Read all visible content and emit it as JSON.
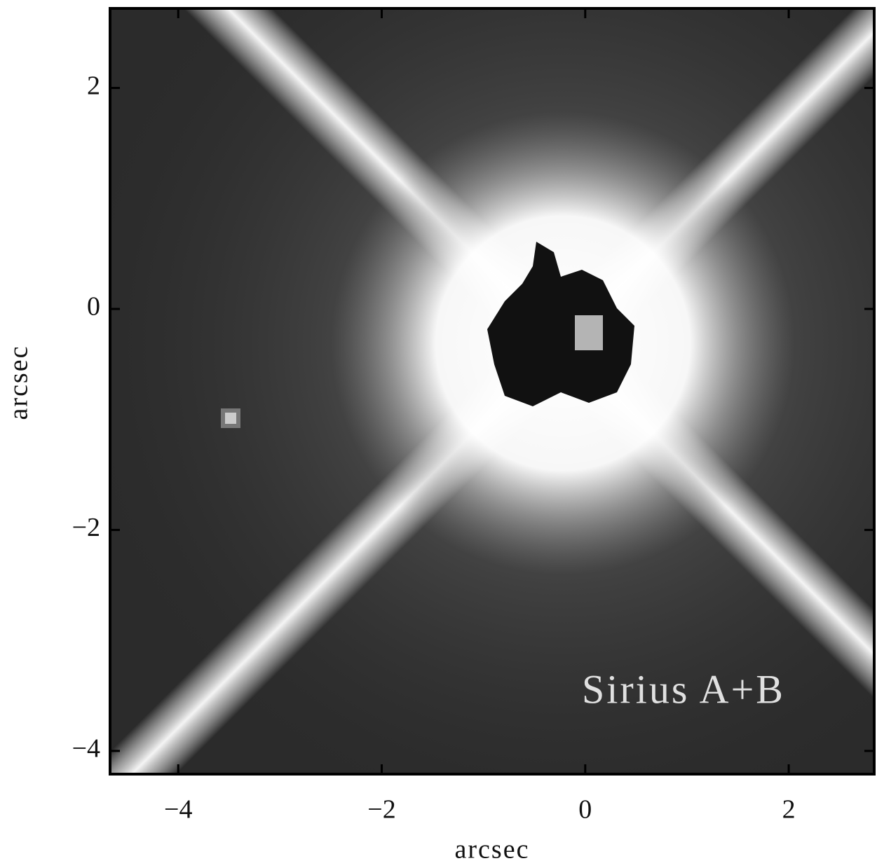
{
  "chart_data": {
    "type": "image",
    "annotation": "Sirius A+B",
    "xlabel": "arcsec",
    "ylabel": "arcsec",
    "xlim": [
      -4.67,
      2.84
    ],
    "ylim": [
      -4.21,
      2.72
    ],
    "xticks": [
      {
        "value": -4,
        "label": "−4"
      },
      {
        "value": -2,
        "label": "−2"
      },
      0,
      2
    ],
    "yticks": [
      {
        "value": -4,
        "label": "−4"
      },
      {
        "value": -2,
        "label": "−2"
      },
      0,
      2
    ]
  }
}
